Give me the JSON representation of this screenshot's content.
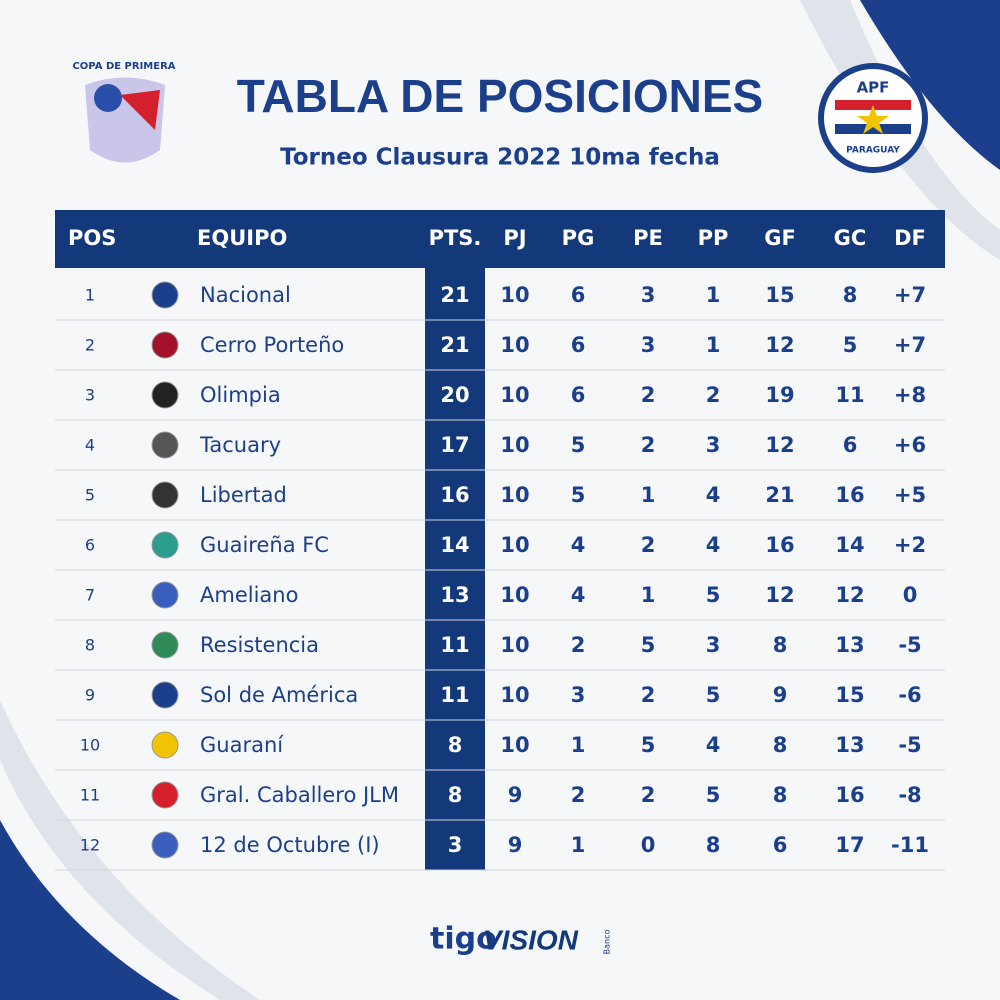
{
  "header": {
    "title": "TABLA DE POSICIONES",
    "subtitle": "Torneo Clausura 2022 10ma fecha",
    "left_logo": "COPA DE PRIMERA",
    "right_logo": {
      "top": "APF",
      "bottom": "PARAGUAY"
    }
  },
  "table": {
    "headers": [
      "POS",
      "EQUIPO",
      "PTS.",
      "PJ",
      "PG",
      "PE",
      "PP",
      "GF",
      "GC",
      "DF"
    ],
    "rows": [
      [
        "1",
        "Nacional",
        "21",
        "10",
        "6",
        "3",
        "1",
        "15",
        "8",
        "+7"
      ],
      [
        "2",
        "Cerro Porteño",
        "21",
        "10",
        "6",
        "3",
        "1",
        "12",
        "5",
        "+7"
      ],
      [
        "3",
        "Olimpia",
        "20",
        "10",
        "6",
        "2",
        "2",
        "19",
        "11",
        "+8"
      ],
      [
        "4",
        "Tacuary",
        "17",
        "10",
        "5",
        "2",
        "3",
        "12",
        "6",
        "+6"
      ],
      [
        "5",
        "Libertad",
        "16",
        "10",
        "5",
        "1",
        "4",
        "21",
        "16",
        "+5"
      ],
      [
        "6",
        "Guaireña FC",
        "14",
        "10",
        "4",
        "2",
        "4",
        "16",
        "14",
        "+2"
      ],
      [
        "7",
        "Ameliano",
        "13",
        "10",
        "4",
        "1",
        "5",
        "12",
        "12",
        "0"
      ],
      [
        "8",
        "Resistencia",
        "11",
        "10",
        "2",
        "5",
        "3",
        "8",
        "13",
        "-5"
      ],
      [
        "9",
        "Sol de América",
        "11",
        "10",
        "3",
        "2",
        "5",
        "9",
        "15",
        "-6"
      ],
      [
        "10",
        "Guaraní",
        "8",
        "10",
        "1",
        "5",
        "4",
        "8",
        "13",
        "-5"
      ],
      [
        "11",
        "Gral. Caballero JLM",
        "8",
        "9",
        "2",
        "2",
        "5",
        "8",
        "16",
        "-8"
      ],
      [
        "12",
        "12 de Octubre (I)",
        "3",
        "9",
        "1",
        "0",
        "8",
        "6",
        "17",
        "-11"
      ]
    ]
  },
  "sponsors": {
    "tigo": "tigo",
    "vision": "VISION",
    "banco": "Banco"
  }
}
